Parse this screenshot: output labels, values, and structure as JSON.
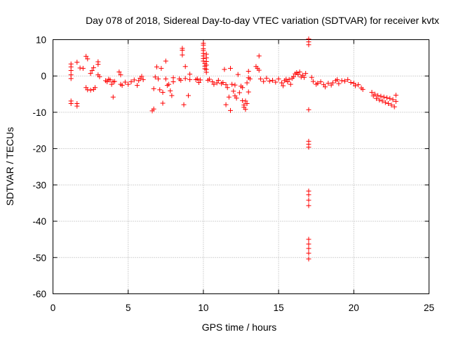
{
  "chart_data": {
    "type": "scatter",
    "title": "Day 078 of 2018, Sidereal Day-to-day VTEC variation (SDTVAR) for receiver kvtx",
    "xlabel": "GPS time / hours",
    "ylabel": "SDTVAR / TECUs",
    "xlim": [
      0,
      25
    ],
    "ylim": [
      -60,
      10
    ],
    "xticks": [
      0,
      5,
      10,
      15,
      20,
      25
    ],
    "yticks": [
      -60,
      -50,
      -40,
      -30,
      -20,
      -10,
      0,
      10
    ],
    "xtick_labels": [
      "0",
      "5",
      "10",
      "15",
      "20",
      "25"
    ],
    "ytick_labels": [
      "-60",
      "-50",
      "-40",
      "-30",
      "-20",
      "-10",
      "0",
      "10"
    ],
    "grid": true,
    "marker": "+",
    "color": "#ff0000",
    "series": [
      {
        "name": "SDTVAR",
        "points": [
          [
            1.2,
            3.3
          ],
          [
            1.2,
            2.5
          ],
          [
            1.2,
            1.5
          ],
          [
            1.2,
            0.3
          ],
          [
            1.2,
            -0.7
          ],
          [
            1.2,
            -6.9
          ],
          [
            1.2,
            -7.6
          ],
          [
            1.6,
            -7.6
          ],
          [
            1.6,
            -8.3
          ],
          [
            1.6,
            3.8
          ],
          [
            1.8,
            2.2
          ],
          [
            2.0,
            2.1
          ],
          [
            2.2,
            5.4
          ],
          [
            2.3,
            4.7
          ],
          [
            2.2,
            -3.2
          ],
          [
            2.3,
            -3.8
          ],
          [
            2.5,
            -3.9
          ],
          [
            2.5,
            0.7
          ],
          [
            2.6,
            1.5
          ],
          [
            2.7,
            2.3
          ],
          [
            2.7,
            -3.7
          ],
          [
            2.8,
            -3.2
          ],
          [
            3.0,
            3.9
          ],
          [
            3.0,
            3.2
          ],
          [
            3.0,
            0.3
          ],
          [
            3.1,
            -0.2
          ],
          [
            3.5,
            -1.3
          ],
          [
            3.6,
            -1.6
          ],
          [
            3.7,
            -0.9
          ],
          [
            3.8,
            -1.1
          ],
          [
            3.9,
            -2.3
          ],
          [
            4.0,
            -1.6
          ],
          [
            4.0,
            -5.8
          ],
          [
            4.1,
            -1.5
          ],
          [
            4.4,
            1.1
          ],
          [
            4.5,
            0.3
          ],
          [
            4.5,
            -2.3
          ],
          [
            4.6,
            -2.6
          ],
          [
            4.8,
            -1.7
          ],
          [
            5.0,
            -2.3
          ],
          [
            5.2,
            -1.6
          ],
          [
            5.4,
            -1.1
          ],
          [
            5.6,
            -2.6
          ],
          [
            5.7,
            -1.3
          ],
          [
            5.8,
            -0.6
          ],
          [
            5.9,
            -0.1
          ],
          [
            6.0,
            -1.0
          ],
          [
            6.6,
            -9.6
          ],
          [
            6.7,
            -9.1
          ],
          [
            6.7,
            -3.5
          ],
          [
            6.8,
            -0.3
          ],
          [
            6.9,
            2.5
          ],
          [
            7.0,
            -0.8
          ],
          [
            7.1,
            -3.8
          ],
          [
            7.2,
            2.1
          ],
          [
            7.3,
            -7.5
          ],
          [
            7.3,
            -4.5
          ],
          [
            7.5,
            4.1
          ],
          [
            7.5,
            -0.8
          ],
          [
            7.6,
            -2.6
          ],
          [
            7.7,
            -2.3
          ],
          [
            7.8,
            -4.1
          ],
          [
            7.9,
            -5.4
          ],
          [
            8.0,
            -1.6
          ],
          [
            8.0,
            -0.5
          ],
          [
            8.4,
            -0.8
          ],
          [
            8.5,
            -1.2
          ],
          [
            8.6,
            7.6
          ],
          [
            8.6,
            7.1
          ],
          [
            8.6,
            5.8
          ],
          [
            8.7,
            -7.9
          ],
          [
            8.8,
            2.6
          ],
          [
            8.8,
            -0.7
          ],
          [
            9.0,
            -5.4
          ],
          [
            9.1,
            -1.0
          ],
          [
            9.1,
            0.5
          ],
          [
            9.5,
            -1.0
          ],
          [
            9.6,
            -0.8
          ],
          [
            9.7,
            -1.8
          ],
          [
            9.8,
            -1.1
          ],
          [
            10.0,
            9.0
          ],
          [
            10.0,
            8.5
          ],
          [
            10.0,
            7.5
          ],
          [
            10.0,
            7.0
          ],
          [
            10.0,
            6.2
          ],
          [
            10.0,
            5.5
          ],
          [
            10.0,
            4.8
          ],
          [
            10.0,
            4.1
          ],
          [
            10.1,
            3.4
          ],
          [
            10.1,
            2.7
          ],
          [
            10.1,
            2.0
          ],
          [
            10.2,
            6.0
          ],
          [
            10.2,
            5.0
          ],
          [
            10.2,
            4.0
          ],
          [
            10.2,
            3.0
          ],
          [
            10.2,
            1.8
          ],
          [
            10.2,
            1.0
          ],
          [
            10.3,
            -1.2
          ],
          [
            10.4,
            -0.9
          ],
          [
            10.6,
            -1.6
          ],
          [
            10.7,
            -2.3
          ],
          [
            10.9,
            -1.9
          ],
          [
            11.0,
            -1.2
          ],
          [
            11.2,
            -2.1
          ],
          [
            11.3,
            -1.8
          ],
          [
            11.4,
            1.8
          ],
          [
            11.5,
            -2.4
          ],
          [
            11.5,
            -7.9
          ],
          [
            11.6,
            -3.2
          ],
          [
            11.7,
            -5.8
          ],
          [
            11.8,
            2.1
          ],
          [
            11.8,
            -9.5
          ],
          [
            11.9,
            -2.3
          ],
          [
            12.0,
            -4.2
          ],
          [
            12.1,
            -5.5
          ],
          [
            12.1,
            -2.5
          ],
          [
            12.2,
            -6.1
          ],
          [
            12.3,
            0.4
          ],
          [
            12.4,
            -4.6
          ],
          [
            12.5,
            -2.8
          ],
          [
            12.6,
            -3.2
          ],
          [
            12.6,
            -6.8
          ],
          [
            12.7,
            -8.0
          ],
          [
            12.7,
            -8.6
          ],
          [
            12.8,
            -9.2
          ],
          [
            12.8,
            -6.9
          ],
          [
            12.9,
            -7.6
          ],
          [
            12.9,
            -1.9
          ],
          [
            13.0,
            -0.5
          ],
          [
            13.0,
            1.3
          ],
          [
            13.0,
            -4.4
          ],
          [
            13.1,
            -0.8
          ],
          [
            13.5,
            2.6
          ],
          [
            13.6,
            2.1
          ],
          [
            13.7,
            1.6
          ],
          [
            13.7,
            5.5
          ],
          [
            13.8,
            -0.8
          ],
          [
            14.0,
            -1.5
          ],
          [
            14.2,
            -0.6
          ],
          [
            14.4,
            -1.4
          ],
          [
            14.6,
            -1.2
          ],
          [
            14.8,
            -1.7
          ],
          [
            15.0,
            -0.8
          ],
          [
            15.2,
            -1.9
          ],
          [
            15.3,
            -2.7
          ],
          [
            15.4,
            -1.3
          ],
          [
            15.5,
            -0.9
          ],
          [
            15.6,
            -1.6
          ],
          [
            15.7,
            -1.0
          ],
          [
            15.8,
            -2.3
          ],
          [
            15.9,
            -0.6
          ],
          [
            16.0,
            -0.2
          ],
          [
            16.1,
            0.6
          ],
          [
            16.2,
            0.9
          ],
          [
            16.3,
            0.4
          ],
          [
            16.4,
            1.1
          ],
          [
            16.5,
            -0.3
          ],
          [
            16.6,
            0.2
          ],
          [
            16.7,
            -0.4
          ],
          [
            16.8,
            0.7
          ],
          [
            17.0,
            10.2
          ],
          [
            17.0,
            9.4
          ],
          [
            17.0,
            8.6
          ],
          [
            17.0,
            -9.3
          ],
          [
            17.0,
            -18.0
          ],
          [
            17.0,
            -18.8
          ],
          [
            17.0,
            -19.6
          ],
          [
            17.0,
            -31.7
          ],
          [
            17.0,
            -32.7
          ],
          [
            17.0,
            -34.2
          ],
          [
            17.0,
            -35.7
          ],
          [
            17.0,
            -45.0
          ],
          [
            17.0,
            -46.3
          ],
          [
            17.0,
            -47.5
          ],
          [
            17.0,
            -48.8
          ],
          [
            17.0,
            -50.4
          ],
          [
            17.2,
            -0.4
          ],
          [
            17.3,
            -1.5
          ],
          [
            17.5,
            -2.3
          ],
          [
            17.6,
            -2.0
          ],
          [
            17.8,
            -1.6
          ],
          [
            18.0,
            -2.4
          ],
          [
            18.1,
            -3.0
          ],
          [
            18.3,
            -2.0
          ],
          [
            18.5,
            -2.5
          ],
          [
            18.6,
            -1.9
          ],
          [
            18.8,
            -1.3
          ],
          [
            18.9,
            -1.0
          ],
          [
            19.0,
            -2.1
          ],
          [
            19.2,
            -1.3
          ],
          [
            19.4,
            -1.4
          ],
          [
            19.6,
            -1.0
          ],
          [
            19.8,
            -1.8
          ],
          [
            20.0,
            -2.0
          ],
          [
            20.1,
            -2.7
          ],
          [
            20.3,
            -2.4
          ],
          [
            20.5,
            -3.3
          ],
          [
            20.6,
            -3.7
          ],
          [
            21.2,
            -4.5
          ],
          [
            21.3,
            -5.5
          ],
          [
            21.4,
            -5.0
          ],
          [
            21.5,
            -6.2
          ],
          [
            21.6,
            -5.4
          ],
          [
            21.7,
            -6.6
          ],
          [
            21.8,
            -5.6
          ],
          [
            21.9,
            -6.9
          ],
          [
            22.0,
            -5.8
          ],
          [
            22.1,
            -7.3
          ],
          [
            22.2,
            -6.0
          ],
          [
            22.3,
            -7.6
          ],
          [
            22.4,
            -6.2
          ],
          [
            22.5,
            -8.0
          ],
          [
            22.6,
            -6.5
          ],
          [
            22.7,
            -8.5
          ],
          [
            22.8,
            -5.3
          ],
          [
            22.8,
            -7.0
          ]
        ]
      }
    ]
  }
}
